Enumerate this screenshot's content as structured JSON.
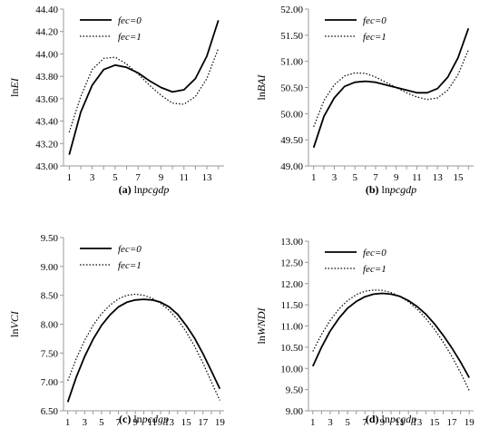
{
  "chart_data": [
    {
      "type": "line",
      "caption_letter": "(a)",
      "caption_text": "ln",
      "caption_var": "pcgdp",
      "ylabel_prefix": "ln",
      "ylabel_var": "EI",
      "x": [
        1,
        2,
        3,
        4,
        5,
        6,
        7,
        8,
        9,
        10,
        11,
        12,
        13,
        14
      ],
      "xticks": [
        1,
        3,
        5,
        7,
        9,
        11,
        13
      ],
      "xlim": [
        0.5,
        14.5
      ],
      "ylim": [
        43.0,
        44.4
      ],
      "yticks": [
        "43.00",
        "43.20",
        "43.40",
        "43.60",
        "43.80",
        "44.00",
        "44.20",
        "44.40"
      ],
      "legend": {
        "placement": "top-left"
      },
      "series": [
        {
          "name": "fec=0",
          "style": "solid",
          "values": [
            43.1,
            43.48,
            43.72,
            43.86,
            43.9,
            43.88,
            43.83,
            43.76,
            43.7,
            43.66,
            43.68,
            43.78,
            43.98,
            44.3
          ]
        },
        {
          "name": "fec=1",
          "style": "dotted",
          "values": [
            43.3,
            43.62,
            43.86,
            43.96,
            43.97,
            43.91,
            43.82,
            43.72,
            43.63,
            43.56,
            43.55,
            43.62,
            43.78,
            44.05
          ]
        }
      ]
    },
    {
      "type": "line",
      "caption_letter": "(b)",
      "caption_text": "ln",
      "caption_var": "pcgdp",
      "ylabel_prefix": "ln",
      "ylabel_var": "BAI",
      "x": [
        1,
        2,
        3,
        4,
        5,
        6,
        7,
        8,
        9,
        10,
        11,
        12,
        13,
        14,
        15,
        16
      ],
      "xticks": [
        1,
        3,
        5,
        7,
        9,
        11,
        13,
        15
      ],
      "xlim": [
        0.5,
        16.5
      ],
      "ylim": [
        49.0,
        52.0
      ],
      "yticks": [
        "49.00",
        "49.50",
        "50.00",
        "50.50",
        "51.00",
        "51.50",
        "52.00"
      ],
      "legend": {
        "placement": "top-left"
      },
      "series": [
        {
          "name": "fec=0",
          "style": "solid",
          "values": [
            49.35,
            49.95,
            50.3,
            50.52,
            50.6,
            50.62,
            50.6,
            50.55,
            50.5,
            50.45,
            50.4,
            50.4,
            50.48,
            50.7,
            51.07,
            51.63
          ]
        },
        {
          "name": "fec=1",
          "style": "dotted",
          "values": [
            49.75,
            50.25,
            50.55,
            50.72,
            50.78,
            50.77,
            50.7,
            50.6,
            50.5,
            50.4,
            50.32,
            50.27,
            50.3,
            50.45,
            50.75,
            51.22
          ]
        }
      ]
    },
    {
      "type": "line",
      "caption_letter": "(c)",
      "caption_text": "ln",
      "caption_var": "pcdgp",
      "ylabel_prefix": "ln",
      "ylabel_var": "VCI",
      "x": [
        1,
        2,
        3,
        4,
        5,
        6,
        7,
        8,
        9,
        10,
        11,
        12,
        13,
        14,
        15,
        16,
        17,
        18,
        19
      ],
      "xticks": [
        1,
        3,
        5,
        7,
        9,
        11,
        13,
        15,
        17,
        19
      ],
      "xlim": [
        0.5,
        19.5
      ],
      "ylim": [
        6.5,
        9.5
      ],
      "yticks": [
        "6.50",
        "7.00",
        "7.50",
        "8.00",
        "8.50",
        "9.00",
        "9.50"
      ],
      "legend": {
        "placement": "top-left"
      },
      "series": [
        {
          "name": "fec=0",
          "style": "solid",
          "values": [
            6.65,
            7.08,
            7.44,
            7.74,
            7.98,
            8.16,
            8.3,
            8.38,
            8.42,
            8.43,
            8.42,
            8.38,
            8.3,
            8.17,
            7.98,
            7.76,
            7.49,
            7.19,
            6.88
          ]
        },
        {
          "name": "fec=1",
          "style": "dotted",
          "values": [
            7.02,
            7.4,
            7.72,
            7.98,
            8.18,
            8.33,
            8.44,
            8.5,
            8.52,
            8.5,
            8.45,
            8.36,
            8.24,
            8.08,
            7.87,
            7.62,
            7.33,
            7.0,
            6.68
          ]
        }
      ]
    },
    {
      "type": "line",
      "caption_letter": "(d)",
      "caption_text": "ln",
      "caption_var": "pcgdp",
      "ylabel_prefix": "ln",
      "ylabel_var": "WNDI",
      "x": [
        1,
        2,
        3,
        4,
        5,
        6,
        7,
        8,
        9,
        10,
        11,
        12,
        13,
        14,
        15,
        16,
        17,
        18,
        19
      ],
      "xticks": [
        1,
        3,
        5,
        7,
        9,
        11,
        13,
        15,
        17,
        19
      ],
      "xlim": [
        0.5,
        19.5
      ],
      "ylim": [
        9.0,
        13.0
      ],
      "yticks": [
        "9.00",
        "9.50",
        "10.00",
        "10.50",
        "11.00",
        "11.50",
        "12.00",
        "12.50",
        "13.00"
      ],
      "legend": {
        "placement": "top-left"
      },
      "series": [
        {
          "name": "fec=0",
          "style": "solid",
          "values": [
            10.05,
            10.5,
            10.88,
            11.18,
            11.42,
            11.58,
            11.69,
            11.75,
            11.77,
            11.75,
            11.7,
            11.6,
            11.46,
            11.28,
            11.05,
            10.78,
            10.48,
            10.15,
            9.78
          ]
        },
        {
          "name": "fec=1",
          "style": "dotted",
          "values": [
            10.4,
            10.8,
            11.13,
            11.4,
            11.6,
            11.74,
            11.82,
            11.85,
            11.84,
            11.79,
            11.7,
            11.57,
            11.4,
            11.18,
            10.92,
            10.62,
            10.28,
            9.9,
            9.48
          ]
        }
      ]
    }
  ]
}
